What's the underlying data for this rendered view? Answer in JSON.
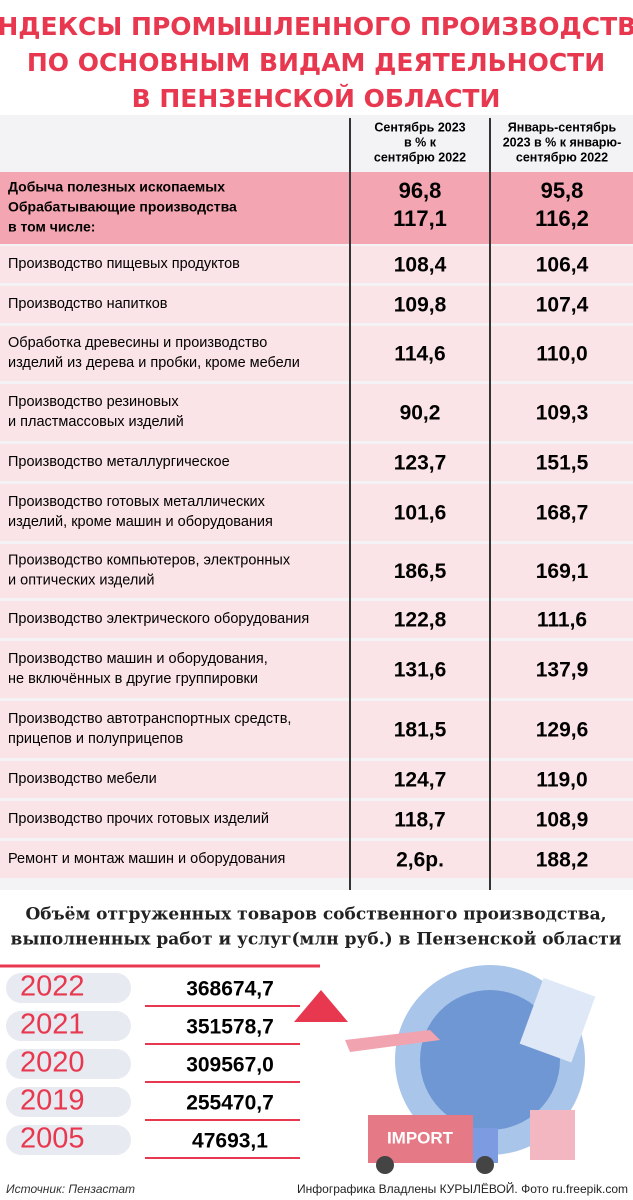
{
  "header": {
    "title": [
      "ИНДЕКСЫ ПРОМЫШЛЕННОГО ПРОИЗВОДСТВА",
      "ПО ОСНОВНЫМ ВИДАМ ДЕЯТЕЛЬНОСТИ",
      "В ПЕНЗЕНСКОЙ ОБЛАСТИ"
    ]
  },
  "table": {
    "columns": [
      [
        "Сентябрь 2023",
        "в % к",
        "сентябрю 2022"
      ],
      [
        "Январь-сентябрь",
        "2023 в % к январю-",
        "сентябрю 2022"
      ]
    ],
    "summary": {
      "labels": [
        "Добыча полезных ископаемых",
        "Обрабатывающие производства",
        "в том числе:"
      ],
      "col1": [
        "96,8",
        "117,1"
      ],
      "col2": [
        "95,8",
        "116,2"
      ]
    },
    "rows": [
      {
        "label": [
          "Производство пищевых продуктов"
        ],
        "values": [
          "108,4",
          "106,4"
        ]
      },
      {
        "label": [
          "Производство напитков"
        ],
        "values": [
          "109,8",
          "107,4"
        ]
      },
      {
        "label": [
          "Обработка древесины и производство",
          "изделий из дерева и пробки, кроме мебели"
        ],
        "values": [
          "114,6",
          "110,0"
        ]
      },
      {
        "label": [
          "Производство резиновых",
          "и пластмассовых изделий"
        ],
        "values": [
          "90,2",
          "109,3"
        ]
      },
      {
        "label": [
          "Производство металлургическое"
        ],
        "values": [
          "123,7",
          "151,5"
        ]
      },
      {
        "label": [
          "Производство готовых металлических",
          "изделий, кроме машин и оборудования"
        ],
        "values": [
          "101,6",
          "168,7"
        ]
      },
      {
        "label": [
          "Производство компьютеров, электронных",
          "и оптических изделий"
        ],
        "values": [
          "186,5",
          "169,1"
        ]
      },
      {
        "label": [
          "Производство электрического оборудования"
        ],
        "values": [
          "122,8",
          "111,6"
        ]
      },
      {
        "label": [
          "Производство машин и оборудования,",
          "не включённых в другие группировки"
        ],
        "values": [
          "131,6",
          "137,9"
        ]
      },
      {
        "label": [
          "Производство автотранспортных средств,",
          "прицепов и полуприцепов"
        ],
        "values": [
          "181,5",
          "129,6"
        ]
      },
      {
        "label": [
          "Производство мебели"
        ],
        "values": [
          "124,7",
          "119,0"
        ]
      },
      {
        "label": [
          "Производство прочих готовых изделий"
        ],
        "values": [
          "118,7",
          "108,9"
        ]
      },
      {
        "label": [
          "Ремонт и монтаж машин и оборудования"
        ],
        "values": [
          "2,6р.",
          "188,2"
        ]
      }
    ]
  },
  "volume": {
    "title": [
      "Объём отгруженных товаров собственного производства,",
      "выполненных работ и услуг(млн руб.) в Пензенской области"
    ],
    "rows": [
      {
        "year": "2022",
        "value": "368674,7"
      },
      {
        "year": "2021",
        "value": "351578,7"
      },
      {
        "year": "2020",
        "value": "309567,0"
      },
      {
        "year": "2019",
        "value": "255470,7"
      },
      {
        "year": "2005",
        "value": "47693,1"
      }
    ],
    "illustration_text": "IMPORT"
  },
  "footer": {
    "source": "Источник: Пензастат",
    "credit": "Инфографика Владлены КУРЫЛЁВОЙ. Фото ru.freepik.com"
  }
}
